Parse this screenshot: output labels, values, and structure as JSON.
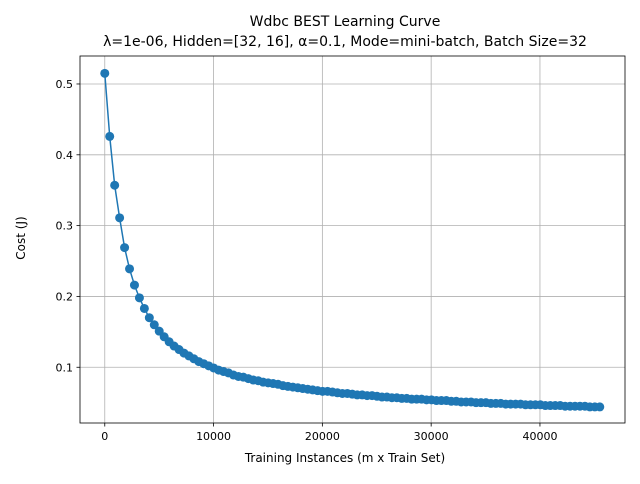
{
  "chart_data": {
    "type": "line",
    "title": "Wdbc BEST Learning Curve",
    "subtitle": "λ=1e-06,  Hidden=[32, 16], α=0.1, Mode=mini-batch, Batch Size=32",
    "xlabel": "Training Instances (m x Train Set)",
    "ylabel": "Cost (J)",
    "xlim": [
      -2277,
      47817
    ],
    "ylim": [
      0.0213,
      0.5395
    ],
    "xticks": [
      0,
      10000,
      20000,
      30000,
      40000
    ],
    "xtick_labels": [
      "0",
      "10000",
      "20000",
      "30000",
      "40000"
    ],
    "yticks": [
      0.1,
      0.2,
      0.3,
      0.4,
      0.5
    ],
    "ytick_labels": [
      "0.1",
      "0.2",
      "0.3",
      "0.4",
      "0.5"
    ],
    "grid": true,
    "legend": "none",
    "colors": {
      "series": "#1f77b4",
      "grid": "#b0b0b0"
    },
    "x": [
      0,
      455,
      910,
      1365,
      1820,
      2275,
      2730,
      3185,
      3640,
      4095,
      4550,
      5005,
      5460,
      5915,
      6370,
      6825,
      7280,
      7735,
      8190,
      8645,
      9100,
      9555,
      10010,
      10465,
      10920,
      11375,
      11830,
      12285,
      12740,
      13195,
      13650,
      14105,
      14560,
      15015,
      15470,
      15925,
      16380,
      16835,
      17290,
      17745,
      18200,
      18655,
      19110,
      19565,
      20020,
      20475,
      20930,
      21385,
      21840,
      22295,
      22750,
      23205,
      23660,
      24115,
      24570,
      25025,
      25480,
      25935,
      26390,
      26845,
      27300,
      27755,
      28210,
      28665,
      29120,
      29575,
      30030,
      30485,
      30940,
      31395,
      31850,
      32305,
      32760,
      33215,
      33670,
      34125,
      34580,
      35035,
      35490,
      35945,
      36400,
      36855,
      37310,
      37765,
      38220,
      38675,
      39130,
      39585,
      40040,
      40495,
      40950,
      41405,
      41860,
      42315,
      42770,
      43225,
      43680,
      44135,
      44590,
      45045,
      45500
    ],
    "y": [
      0.515,
      0.426,
      0.357,
      0.311,
      0.269,
      0.239,
      0.216,
      0.198,
      0.183,
      0.17,
      0.16,
      0.151,
      0.143,
      0.136,
      0.13,
      0.125,
      0.12,
      0.116,
      0.112,
      0.108,
      0.105,
      0.102,
      0.099,
      0.096,
      0.094,
      0.092,
      0.089,
      0.087,
      0.086,
      0.084,
      0.082,
      0.081,
      0.079,
      0.078,
      0.077,
      0.076,
      0.074,
      0.073,
      0.072,
      0.071,
      0.07,
      0.069,
      0.068,
      0.067,
      0.066,
      0.066,
      0.065,
      0.064,
      0.063,
      0.063,
      0.062,
      0.061,
      0.061,
      0.06,
      0.06,
      0.059,
      0.058,
      0.058,
      0.057,
      0.057,
      0.056,
      0.056,
      0.055,
      0.055,
      0.055,
      0.054,
      0.054,
      0.053,
      0.053,
      0.053,
      0.052,
      0.052,
      0.051,
      0.051,
      0.051,
      0.05,
      0.05,
      0.05,
      0.049,
      0.049,
      0.049,
      0.048,
      0.048,
      0.048,
      0.048,
      0.047,
      0.047,
      0.047,
      0.047,
      0.046,
      0.046,
      0.046,
      0.046,
      0.045,
      0.045,
      0.045,
      0.045,
      0.045,
      0.044,
      0.044,
      0.044
    ]
  }
}
